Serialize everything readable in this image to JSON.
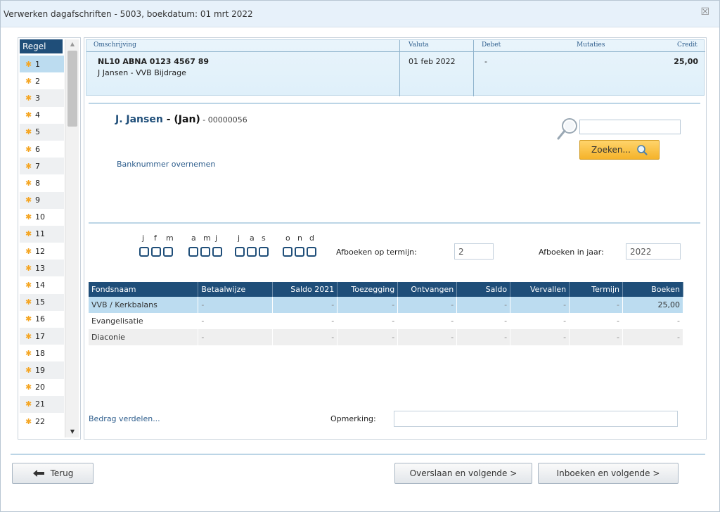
{
  "window": {
    "title": "Verwerken dagafschriften - 5003, boekdatum: 01 mrt 2022",
    "close_icon": "close-icon"
  },
  "sidebar": {
    "header": "Regel",
    "selected": 1,
    "rows": [
      "1",
      "2",
      "3",
      "4",
      "5",
      "6",
      "7",
      "8",
      "9",
      "10",
      "11",
      "12",
      "13",
      "14",
      "15",
      "16",
      "17",
      "18",
      "19",
      "20",
      "21",
      "22"
    ],
    "row_icon": "star-icon",
    "star_color": "#f5a623"
  },
  "transaction": {
    "headers": {
      "omschrijving": "Omschrijving",
      "valuta": "Valuta",
      "debet": "Debet",
      "mutaties": "Mutaties",
      "credit": "Credit"
    },
    "account": "NL10 ABNA 0123 4567 89",
    "description": "J Jansen - VVB Bijdrage",
    "valuta": "01 feb 2022",
    "debet": "-",
    "credit": "25,00"
  },
  "member": {
    "name": "J. Jansen",
    "sep": " - ",
    "nickname": "(Jan)",
    "number": " - 00000056"
  },
  "links": {
    "banknummer": "Banknummer overnemen",
    "bedrag_verdelen": "Bedrag verdelen..."
  },
  "search": {
    "value": "",
    "button_label": "Zoeken...",
    "icon": "search-icon"
  },
  "months": {
    "letters": [
      "j",
      "f",
      "m",
      "a",
      "m",
      "j",
      "j",
      "a",
      "s",
      "o",
      "n",
      "d"
    ]
  },
  "termijn": {
    "label": "Afboeken op termijn:",
    "value": "2"
  },
  "jaar": {
    "label": "Afboeken in jaar:",
    "value": "2022"
  },
  "funds": {
    "columns": [
      "Fondsnaam",
      "Betaalwijze",
      "Saldo 2021",
      "Toezegging",
      "Ontvangen",
      "Saldo",
      "Vervallen",
      "Termijn",
      "Boeken"
    ],
    "rows": [
      {
        "name": "VVB / Kerkbalans",
        "cells": [
          "-",
          "-",
          "-",
          "-",
          "-",
          "-",
          "-",
          "25,00"
        ]
      },
      {
        "name": "Evangelisatie",
        "cells": [
          "-",
          "-",
          "-",
          "-",
          "-",
          "-",
          "-",
          "-"
        ]
      },
      {
        "name": "Diaconie",
        "cells": [
          "-",
          "-",
          "-",
          "-",
          "-",
          "-",
          "-",
          "-"
        ]
      }
    ]
  },
  "remark": {
    "label": "Opmerking:",
    "value": ""
  },
  "buttons": {
    "back": "Terug",
    "back_icon": "arrow-left-icon",
    "skip": "Overslaan en volgende >",
    "book": "Inboeken en volgende >"
  },
  "colors": {
    "accent": "#1f4e79",
    "selection": "#bcdcf0",
    "search_button": "#f5b32a"
  }
}
